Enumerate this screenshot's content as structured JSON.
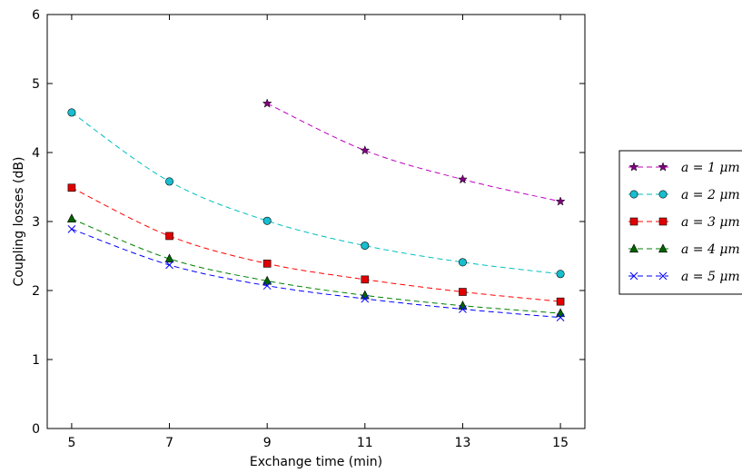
{
  "chart_data": {
    "type": "line",
    "title": "",
    "xlabel": "Exchange time (min)",
    "ylabel": "Coupling losses (dB)",
    "xlim": [
      4.5,
      15.5
    ],
    "ylim": [
      0,
      6
    ],
    "xticks": [
      5,
      7,
      9,
      11,
      13,
      15
    ],
    "yticks": [
      0,
      1,
      2,
      3,
      4,
      5,
      6
    ],
    "grid": false,
    "legend_position": "right, outside plot",
    "series": [
      {
        "name": "a = 1 μm",
        "color": "#bf00bf",
        "marker_fill": "#800080",
        "marker": "star",
        "x": [
          9,
          11,
          13,
          15
        ],
        "y": [
          4.71,
          4.03,
          3.61,
          3.29
        ]
      },
      {
        "name": "a = 2 μm",
        "color": "#00bfbf",
        "marker_fill": "#17becf",
        "marker": "circle",
        "x": [
          5,
          7,
          9,
          11,
          13,
          15
        ],
        "y": [
          4.58,
          3.58,
          3.01,
          2.65,
          2.41,
          2.24
        ]
      },
      {
        "name": "a = 3 μm",
        "color": "#ff0000",
        "marker_fill": "#e00000",
        "marker": "square",
        "x": [
          5,
          7,
          9,
          11,
          13,
          15
        ],
        "y": [
          3.49,
          2.79,
          2.39,
          2.16,
          1.98,
          1.84
        ]
      },
      {
        "name": "a = 4 μm",
        "color": "#008000",
        "marker_fill": "#006400",
        "marker": "triangle",
        "x": [
          5,
          7,
          9,
          11,
          13,
          15
        ],
        "y": [
          3.04,
          2.46,
          2.14,
          1.93,
          1.78,
          1.67
        ]
      },
      {
        "name": "a = 5 μm",
        "color": "#0000ff",
        "marker_fill": "#0000ff",
        "marker": "x",
        "x": [
          5,
          7,
          9,
          11,
          13,
          15
        ],
        "y": [
          2.89,
          2.37,
          2.07,
          1.88,
          1.73,
          1.61
        ]
      }
    ]
  }
}
